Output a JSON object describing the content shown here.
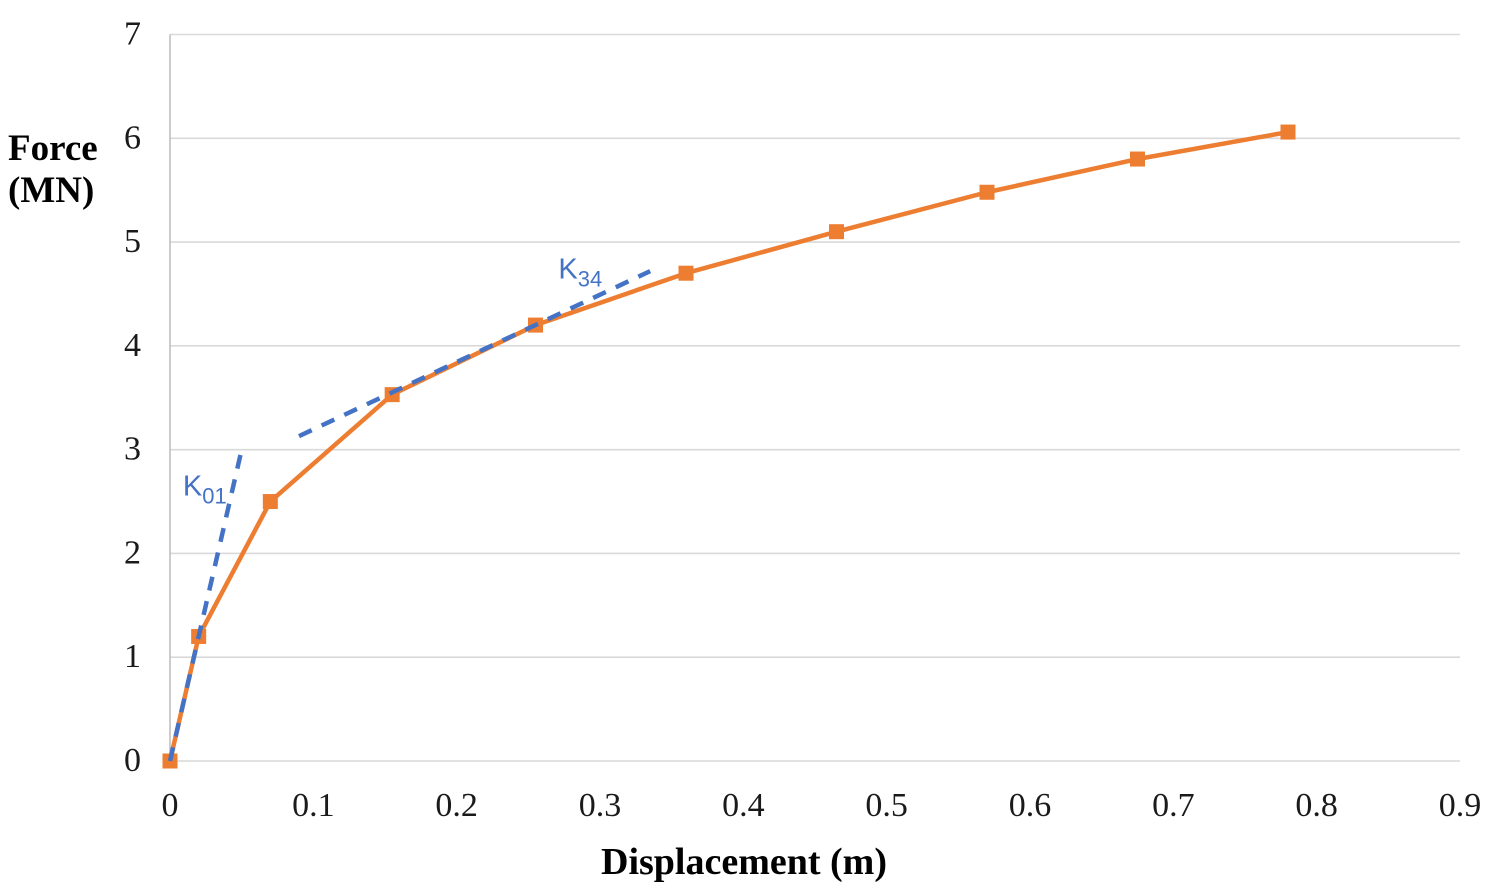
{
  "chart_data": {
    "type": "line",
    "title": "",
    "xlabel": "Displacement (m)",
    "ylabel": "Force (MN)",
    "ylabel_lines": [
      "Force",
      "(MN)"
    ],
    "xlim": [
      0,
      0.9
    ],
    "ylim": [
      0,
      7
    ],
    "x_ticks": [
      0,
      0.1,
      0.2,
      0.3,
      0.4,
      0.5,
      0.6,
      0.7,
      0.8,
      0.9
    ],
    "x_tick_labels": [
      "0",
      "0.1",
      "0.2",
      "0.3",
      "0.4",
      "0.5",
      "0.6",
      "0.7",
      "0.8",
      "0.9"
    ],
    "y_ticks": [
      0,
      1,
      2,
      3,
      4,
      5,
      6,
      7
    ],
    "y_tick_labels": [
      "0",
      "1",
      "2",
      "3",
      "4",
      "5",
      "6",
      "7"
    ],
    "grid": "horizontal",
    "legend_position": "none",
    "colors": {
      "curve": "#ED7D31",
      "tangent": "#4472C4",
      "gridline": "#D9D9D9",
      "axis_line": "#BFBFBF",
      "text": "#1A1A1A",
      "background": "#FFFFFF"
    },
    "series": [
      {
        "name": "force-displacement-curve",
        "style": "solid",
        "marker": "square",
        "color": "#ED7D31",
        "points": [
          [
            0,
            0
          ],
          [
            0.02,
            1.2
          ],
          [
            0.07,
            2.5
          ],
          [
            0.155,
            3.53
          ],
          [
            0.255,
            4.2
          ],
          [
            0.36,
            4.7
          ],
          [
            0.465,
            5.1
          ],
          [
            0.57,
            5.48
          ],
          [
            0.675,
            5.8
          ],
          [
            0.78,
            6.06
          ]
        ]
      },
      {
        "name": "k01-tangent-line",
        "style": "dashed",
        "marker": "none",
        "color": "#4472C4",
        "points": [
          [
            0,
            0
          ],
          [
            0.05,
            3.0
          ]
        ]
      },
      {
        "name": "k34-tangent-line",
        "style": "dashed",
        "marker": "none",
        "color": "#4472C4",
        "points": [
          [
            0.09,
            3.13
          ],
          [
            0.335,
            4.72
          ]
        ]
      }
    ],
    "annotations": [
      {
        "name": "k01-label",
        "text": "K",
        "subscript": "01",
        "anchor": [
          0.009,
          2.56
        ],
        "color": "#4472C4"
      },
      {
        "name": "k34-label",
        "text": "K",
        "subscript": "34",
        "anchor": [
          0.271,
          4.65
        ],
        "color": "#4472C4"
      }
    ]
  }
}
